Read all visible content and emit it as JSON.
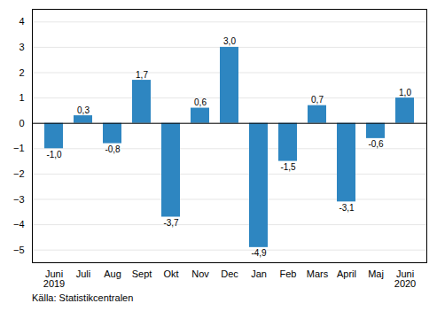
{
  "chart_data": {
    "type": "bar",
    "categories": [
      "Juni\n2019",
      "Juli",
      "Aug",
      "Sept",
      "Okt",
      "Nov",
      "Dec",
      "Jan",
      "Feb",
      "Mars",
      "April",
      "Maj",
      "Juni\n2020"
    ],
    "values": [
      -1.0,
      0.3,
      -0.8,
      1.7,
      -3.7,
      0.6,
      3.0,
      -4.9,
      -1.5,
      0.7,
      -3.1,
      -0.6,
      1.0
    ],
    "value_labels": [
      "-1,0",
      "0,3",
      "-0,8",
      "1,7",
      "-3,7",
      "0,6",
      "3,0",
      "-4,9",
      "-1,5",
      "0,7",
      "-3,1",
      "-0,6",
      "1,0"
    ],
    "data_labels": true,
    "color": "#2e86c1",
    "ylim": [
      -5.5,
      4.5
    ],
    "yticks": [
      -5,
      -4,
      -3,
      -2,
      -1,
      0,
      1,
      2,
      3,
      4
    ],
    "grid": true,
    "caption": "Källa: Statistikcentralen"
  }
}
